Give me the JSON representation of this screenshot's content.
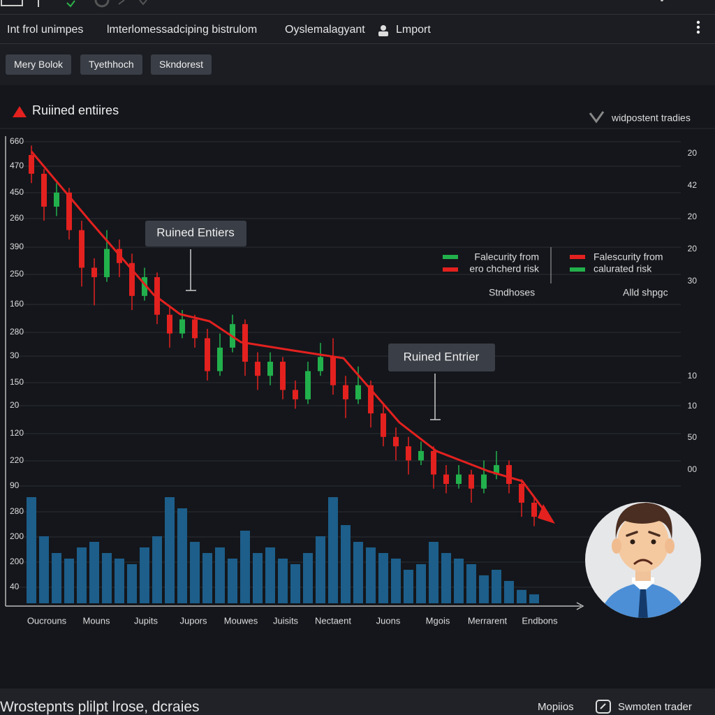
{
  "topbar": {
    "menu": [
      "Int frol unimpes",
      "lmterlomessadciping bistrulom",
      "Oyslemalagyant",
      "Lmport"
    ]
  },
  "toolbar": {
    "buttons": [
      "Mery Bolok",
      "Tyethhoch",
      "Skndorest"
    ]
  },
  "panel": {
    "title": "Ruiined entiires",
    "status": "widpostent tradies"
  },
  "chart_data": {
    "type": "candlestick",
    "yaxis_labels": [
      "660",
      "470",
      "450",
      "260",
      "390",
      "250",
      "160",
      "280",
      "30",
      "150",
      "20",
      "120",
      "220",
      "90",
      "280",
      "200",
      "200",
      "40"
    ],
    "y2axis_labels": [
      "20",
      "42",
      "20",
      "20",
      "30",
      "10",
      "10",
      "50",
      "00"
    ],
    "x_labels": [
      "Oucrouns",
      "Mouns",
      "Jupits",
      "Jupors",
      "Mouwes",
      "Juisits",
      "Nectaent",
      "Juons",
      "Mgois",
      "Merrarent",
      "Endbons"
    ],
    "annotations": [
      "Ruined Entiers",
      "Ruined Entrier"
    ],
    "legend": [
      "Falecurity from",
      "ero chcherd risk",
      "Falescurity from",
      "calurated risk",
      "Stndhoses",
      "Alld shpgc"
    ],
    "open": [
      96,
      92,
      85,
      88,
      80,
      72,
      70,
      76,
      73,
      66,
      70,
      62,
      58,
      61,
      57,
      50,
      55,
      60,
      52,
      49,
      52,
      46,
      44,
      50,
      53,
      47,
      44,
      47,
      41,
      36,
      34,
      31,
      33,
      28,
      26,
      28,
      25,
      28,
      30,
      26,
      22
    ],
    "high": [
      98,
      93,
      90,
      89,
      82,
      74,
      80,
      78,
      75,
      72,
      71,
      64,
      63,
      62,
      59,
      58,
      62,
      61,
      54,
      54,
      53,
      48,
      52,
      56,
      57,
      49,
      51,
      48,
      43,
      38,
      36,
      35,
      34,
      30,
      30,
      29,
      31,
      33,
      31,
      27,
      23
    ],
    "low": [
      90,
      82,
      83,
      78,
      68,
      64,
      69,
      70,
      63,
      65,
      60,
      55,
      57,
      55,
      48,
      49,
      54,
      49,
      46,
      47,
      44,
      42,
      43,
      49,
      45,
      40,
      43,
      38,
      34,
      31,
      28,
      30,
      25,
      24,
      25,
      22,
      24,
      27,
      24,
      19,
      17
    ],
    "close": [
      92,
      85,
      88,
      80,
      72,
      70,
      76,
      73,
      66,
      70,
      62,
      58,
      61,
      57,
      50,
      55,
      60,
      52,
      49,
      52,
      46,
      44,
      50,
      53,
      47,
      44,
      47,
      41,
      36,
      34,
      31,
      33,
      28,
      26,
      28,
      25,
      28,
      30,
      26,
      22,
      19
    ],
    "volume": [
      95,
      60,
      45,
      40,
      50,
      55,
      45,
      40,
      35,
      50,
      60,
      95,
      85,
      55,
      45,
      50,
      40,
      65,
      45,
      50,
      40,
      35,
      45,
      60,
      95,
      70,
      55,
      50,
      45,
      40,
      30,
      35,
      55,
      45,
      40,
      35,
      25,
      30,
      20,
      12,
      8
    ],
    "ylim": [
      0,
      100
    ],
    "y2lim": [
      0,
      100
    ],
    "up_color": "#22b04c",
    "down_color": "#e3211f",
    "volume_color": "#1d5e8a"
  },
  "footer": {
    "caption": "Wrostepnts plilpt lrose, dcraies",
    "links": [
      "Mopiios",
      "Swmoten trader"
    ]
  }
}
